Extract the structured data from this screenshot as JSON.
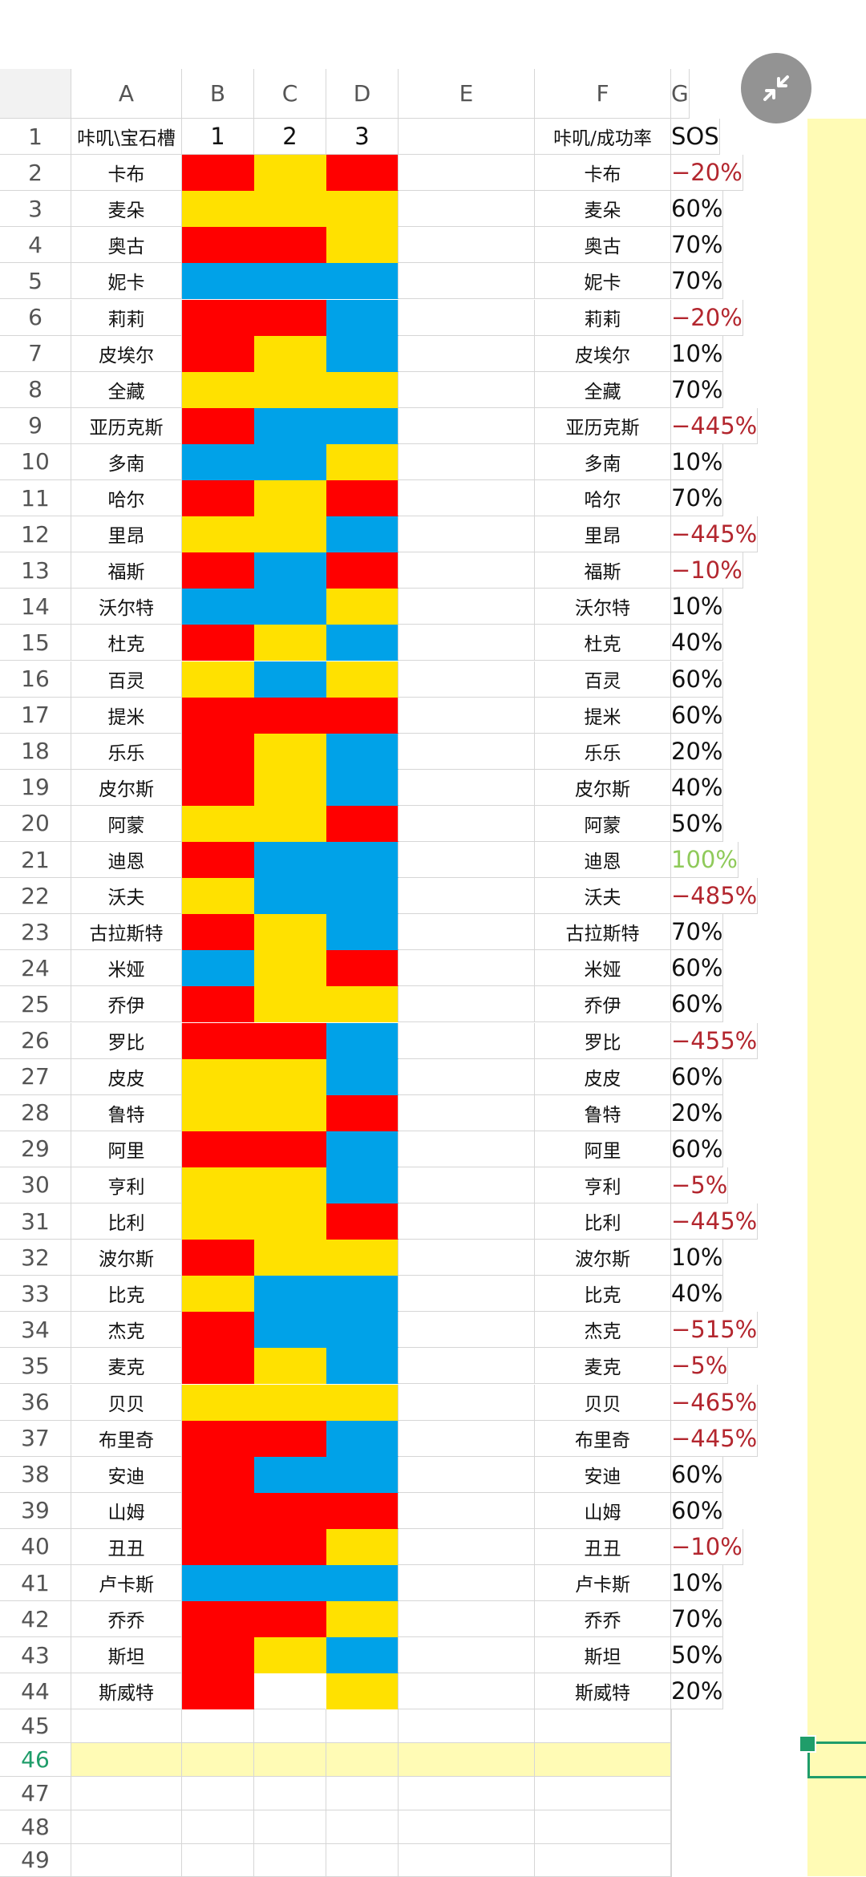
{
  "columns": [
    "A",
    "B",
    "C",
    "D",
    "E",
    "F",
    "G"
  ],
  "header_row": {
    "num": "1",
    "a": "咔叽\\宝石槽",
    "b": "1",
    "c": "2",
    "d": "3",
    "e": "",
    "f": "咔叽/成功率",
    "g": "SOS"
  },
  "colors": {
    "R": "#ff0000",
    "Y": "#ffe100",
    "B": "#00a2e8",
    "W": "#ffffff",
    "grid": "#d6d6d6",
    "selection": "#1f9d6a",
    "highlight": "#fffbb5",
    "negative": "#b3262e",
    "best": "#8fca5a"
  },
  "rows": [
    {
      "num": "2",
      "name": "卡布",
      "slots": [
        "R",
        "Y",
        "R"
      ],
      "f": "卡布",
      "g": "−20%"
    },
    {
      "num": "3",
      "name": "麦朵",
      "slots": [
        "Y",
        "Y",
        "Y"
      ],
      "f": "麦朵",
      "g": "60%"
    },
    {
      "num": "4",
      "name": "奥古",
      "slots": [
        "R",
        "R",
        "Y"
      ],
      "f": "奥古",
      "g": "70%"
    },
    {
      "num": "5",
      "name": "妮卡",
      "slots": [
        "B",
        "B",
        "B"
      ],
      "f": "妮卡",
      "g": "70%"
    },
    {
      "num": "6",
      "name": "莉莉",
      "slots": [
        "R",
        "R",
        "B"
      ],
      "f": "莉莉",
      "g": "−20%"
    },
    {
      "num": "7",
      "name": "皮埃尔",
      "slots": [
        "R",
        "Y",
        "B"
      ],
      "f": "皮埃尔",
      "g": "10%"
    },
    {
      "num": "8",
      "name": "全藏",
      "slots": [
        "Y",
        "Y",
        "Y"
      ],
      "f": "全藏",
      "g": "70%"
    },
    {
      "num": "9",
      "name": "亚历克斯",
      "slots": [
        "R",
        "B",
        "B"
      ],
      "f": "亚历克斯",
      "g": "−445%"
    },
    {
      "num": "10",
      "name": "多南",
      "slots": [
        "B",
        "B",
        "Y"
      ],
      "f": "多南",
      "g": "10%"
    },
    {
      "num": "11",
      "name": "哈尔",
      "slots": [
        "R",
        "Y",
        "R"
      ],
      "f": "哈尔",
      "g": "70%"
    },
    {
      "num": "12",
      "name": "里昂",
      "slots": [
        "Y",
        "Y",
        "B"
      ],
      "f": "里昂",
      "g": "−445%"
    },
    {
      "num": "13",
      "name": "福斯",
      "slots": [
        "R",
        "B",
        "R"
      ],
      "f": "福斯",
      "g": "−10%"
    },
    {
      "num": "14",
      "name": "沃尔特",
      "slots": [
        "B",
        "B",
        "Y"
      ],
      "f": "沃尔特",
      "g": "10%"
    },
    {
      "num": "15",
      "name": "杜克",
      "slots": [
        "R",
        "Y",
        "B"
      ],
      "f": "杜克",
      "g": "40%"
    },
    {
      "num": "16",
      "name": "百灵",
      "slots": [
        "Y",
        "B",
        "Y"
      ],
      "f": "百灵",
      "g": "60%"
    },
    {
      "num": "17",
      "name": "提米",
      "slots": [
        "R",
        "R",
        "R"
      ],
      "f": "提米",
      "g": "60%"
    },
    {
      "num": "18",
      "name": "乐乐",
      "slots": [
        "R",
        "Y",
        "B"
      ],
      "f": "乐乐",
      "g": "20%"
    },
    {
      "num": "19",
      "name": "皮尔斯",
      "slots": [
        "R",
        "Y",
        "B"
      ],
      "f": "皮尔斯",
      "g": "40%"
    },
    {
      "num": "20",
      "name": "阿蒙",
      "slots": [
        "Y",
        "Y",
        "R"
      ],
      "f": "阿蒙",
      "g": "50%"
    },
    {
      "num": "21",
      "name": "迪恩",
      "slots": [
        "R",
        "B",
        "B"
      ],
      "f": "迪恩",
      "g": "100%"
    },
    {
      "num": "22",
      "name": "沃夫",
      "slots": [
        "Y",
        "B",
        "B"
      ],
      "f": "沃夫",
      "g": "−485%"
    },
    {
      "num": "23",
      "name": "古拉斯特",
      "slots": [
        "R",
        "Y",
        "B"
      ],
      "f": "古拉斯特",
      "g": "70%"
    },
    {
      "num": "24",
      "name": "米娅",
      "slots": [
        "B",
        "Y",
        "R"
      ],
      "f": "米娅",
      "g": "60%"
    },
    {
      "num": "25",
      "name": "乔伊",
      "slots": [
        "R",
        "Y",
        "Y"
      ],
      "f": "乔伊",
      "g": "60%"
    },
    {
      "num": "26",
      "name": "罗比",
      "slots": [
        "R",
        "R",
        "B"
      ],
      "f": "罗比",
      "g": "−455%"
    },
    {
      "num": "27",
      "name": "皮皮",
      "slots": [
        "Y",
        "Y",
        "B"
      ],
      "f": "皮皮",
      "g": "60%"
    },
    {
      "num": "28",
      "name": "鲁特",
      "slots": [
        "Y",
        "Y",
        "R"
      ],
      "f": "鲁特",
      "g": "20%"
    },
    {
      "num": "29",
      "name": "阿里",
      "slots": [
        "R",
        "R",
        "B"
      ],
      "f": "阿里",
      "g": "60%"
    },
    {
      "num": "30",
      "name": "亨利",
      "slots": [
        "Y",
        "Y",
        "B"
      ],
      "f": "亨利",
      "g": "−5%"
    },
    {
      "num": "31",
      "name": "比利",
      "slots": [
        "Y",
        "Y",
        "R"
      ],
      "f": "比利",
      "g": "−445%"
    },
    {
      "num": "32",
      "name": "波尔斯",
      "slots": [
        "R",
        "Y",
        "Y"
      ],
      "f": "波尔斯",
      "g": "10%"
    },
    {
      "num": "33",
      "name": "比克",
      "slots": [
        "Y",
        "B",
        "B"
      ],
      "f": "比克",
      "g": "40%"
    },
    {
      "num": "34",
      "name": "杰克",
      "slots": [
        "R",
        "B",
        "B"
      ],
      "f": "杰克",
      "g": "−515%"
    },
    {
      "num": "35",
      "name": "麦克",
      "slots": [
        "R",
        "Y",
        "B"
      ],
      "f": "麦克",
      "g": "−5%"
    },
    {
      "num": "36",
      "name": "贝贝",
      "slots": [
        "Y",
        "Y",
        "Y"
      ],
      "f": "贝贝",
      "g": "−465%"
    },
    {
      "num": "37",
      "name": "布里奇",
      "slots": [
        "R",
        "R",
        "B"
      ],
      "f": "布里奇",
      "g": "−445%"
    },
    {
      "num": "38",
      "name": "安迪",
      "slots": [
        "R",
        "B",
        "B"
      ],
      "f": "安迪",
      "g": "60%"
    },
    {
      "num": "39",
      "name": "山姆",
      "slots": [
        "R",
        "R",
        "R"
      ],
      "f": "山姆",
      "g": "60%"
    },
    {
      "num": "40",
      "name": "丑丑",
      "slots": [
        "R",
        "R",
        "Y"
      ],
      "f": "丑丑",
      "g": "−10%"
    },
    {
      "num": "41",
      "name": "卢卡斯",
      "slots": [
        "B",
        "B",
        "B"
      ],
      "f": "卢卡斯",
      "g": "10%"
    },
    {
      "num": "42",
      "name": "乔乔",
      "slots": [
        "R",
        "R",
        "Y"
      ],
      "f": "乔乔",
      "g": "70%"
    },
    {
      "num": "43",
      "name": "斯坦",
      "slots": [
        "R",
        "Y",
        "B"
      ],
      "f": "斯坦",
      "g": "50%"
    },
    {
      "num": "44",
      "name": "斯威特",
      "slots": [
        "R",
        "W",
        "Y"
      ],
      "f": "斯威特",
      "g": "20%"
    }
  ],
  "empty_rows": [
    "45",
    "46",
    "47",
    "48",
    "49"
  ],
  "active_row": "46",
  "fab_icon": "collapse-arrows-icon"
}
